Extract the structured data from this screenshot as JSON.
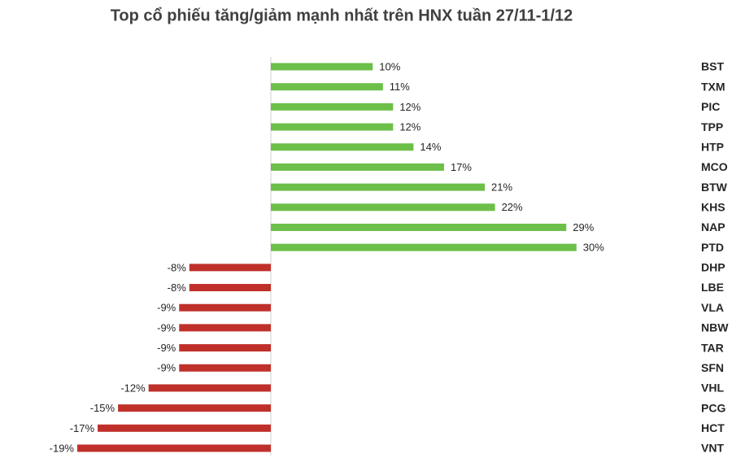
{
  "chart_data": {
    "type": "bar",
    "orientation": "horizontal",
    "title": "Top cổ phiếu tăng/giảm mạnh nhất trên HNX tuần 27/11-1/12",
    "categories": [
      "BST",
      "TXM",
      "PIC",
      "TPP",
      "HTP",
      "MCO",
      "BTW",
      "KHS",
      "NAP",
      "PTD",
      "DHP",
      "LBE",
      "VLA",
      "NBW",
      "TAR",
      "SFN",
      "VHL",
      "PCG",
      "HCT",
      "VNT"
    ],
    "values": [
      10,
      11,
      12,
      12,
      14,
      17,
      21,
      22,
      29,
      30,
      -8,
      -8,
      -9,
      -9,
      -9,
      -9,
      -12,
      -15,
      -17,
      -19
    ],
    "value_labels": [
      "10%",
      "11%",
      "12%",
      "12%",
      "14%",
      "17%",
      "21%",
      "22%",
      "29%",
      "30%",
      "-8%",
      "-8%",
      "-9%",
      "-9%",
      "-9%",
      "-9%",
      "-12%",
      "-15%",
      "-17%",
      "-19%"
    ],
    "color_positive": "#6cbf48",
    "color_negative": "#c0302b"
  }
}
